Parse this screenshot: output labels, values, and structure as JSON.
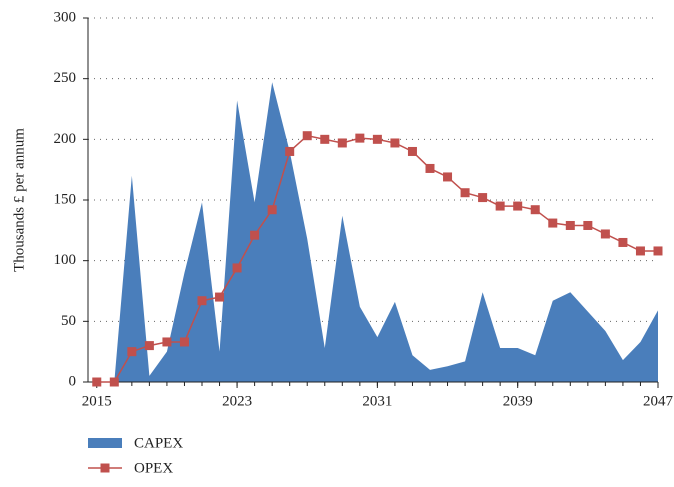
{
  "chart_data": {
    "type": "area_line",
    "y_label": "Thousands £ per annum",
    "x": [
      2015,
      2016,
      2017,
      2018,
      2019,
      2020,
      2021,
      2022,
      2023,
      2024,
      2025,
      2026,
      2027,
      2028,
      2029,
      2030,
      2031,
      2032,
      2033,
      2034,
      2035,
      2036,
      2037,
      2038,
      2039,
      2040,
      2041,
      2042,
      2043,
      2044,
      2045,
      2046,
      2047
    ],
    "series": [
      {
        "name": "CAPEX",
        "color": "#4a7ebb",
        "values": [
          0,
          0,
          170,
          5,
          25,
          90,
          148,
          25,
          232,
          148,
          247,
          190,
          118,
          28,
          137,
          62,
          37,
          66,
          22,
          10,
          13,
          17,
          74,
          28,
          28,
          22,
          67,
          74,
          58,
          42,
          18,
          33,
          59
        ]
      },
      {
        "name": "OPEX",
        "color": "#c0504d",
        "values": [
          0,
          0,
          25,
          30,
          33,
          33,
          67,
          70,
          94,
          121,
          142,
          190,
          203,
          200,
          197,
          201,
          200,
          197,
          190,
          176,
          169,
          156,
          152,
          145,
          145,
          142,
          131,
          129,
          129,
          122,
          115,
          108,
          108
        ]
      }
    ],
    "xlim": [
      2014.5,
      2047
    ],
    "xticks": [
      2015,
      2023,
      2031,
      2039,
      2047
    ],
    "ylim": [
      0,
      300
    ],
    "yticks": [
      0,
      50,
      100,
      150,
      200,
      250,
      300
    ],
    "grid": true,
    "legend": "bottom-left"
  }
}
